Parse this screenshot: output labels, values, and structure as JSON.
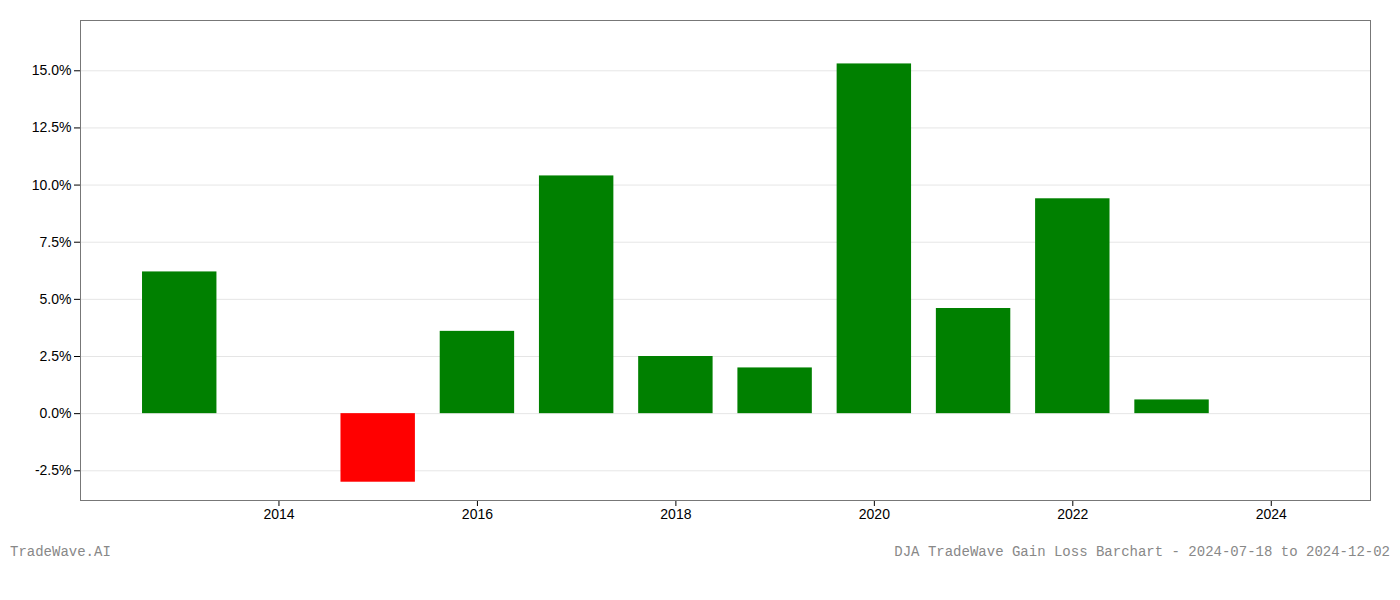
{
  "chart_data": {
    "type": "bar",
    "x": [
      2013,
      2015,
      2016,
      2017,
      2018,
      2019,
      2020,
      2021,
      2022,
      2023
    ],
    "values": [
      6.2,
      -3.0,
      3.6,
      10.4,
      2.5,
      2.0,
      15.3,
      4.6,
      9.4,
      0.6
    ],
    "colors": [
      "#008000",
      "#ff0000",
      "#008000",
      "#008000",
      "#008000",
      "#008000",
      "#008000",
      "#008000",
      "#008000",
      "#008000"
    ],
    "xlim": [
      2012.0,
      2025.0
    ],
    "ylim": [
      -3.8,
      17.2
    ],
    "xticks": [
      2014,
      2016,
      2018,
      2020,
      2022,
      2024
    ],
    "yticks": [
      {
        "value": -2.5,
        "label": "-2.5%"
      },
      {
        "value": 0.0,
        "label": "0.0%"
      },
      {
        "value": 2.5,
        "label": "2.5%"
      },
      {
        "value": 5.0,
        "label": "5.0%"
      },
      {
        "value": 7.5,
        "label": "7.5%"
      },
      {
        "value": 10.0,
        "label": "10.0%"
      },
      {
        "value": 12.5,
        "label": "12.5%"
      },
      {
        "value": 15.0,
        "label": "15.0%"
      }
    ],
    "grid": true,
    "annotations": [
      "TradeWave.AI",
      "DJA TradeWave Gain Loss Barchart - 2024-07-18 to 2024-12-02"
    ]
  }
}
